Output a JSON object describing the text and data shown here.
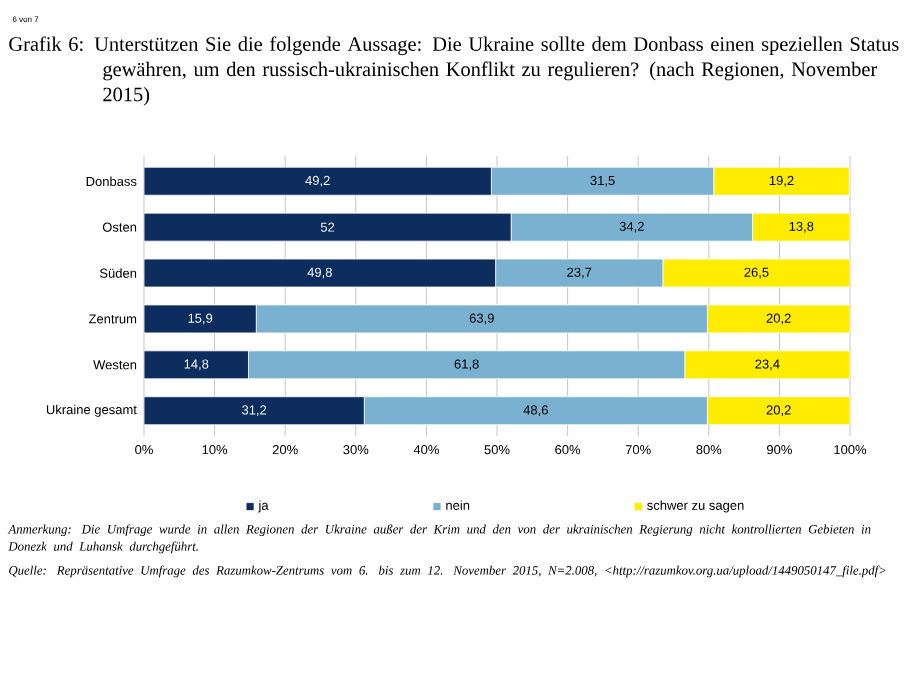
{
  "chart_data": {
    "type": "bar",
    "orientation": "horizontal",
    "stacked": true,
    "title": "Grafik 6: Unterstützen Sie die folgende Aussage: Die Ukraine sollte dem Donbass einen speziellen Status gewähren, um den russisch-ukrainischen Konflikt zu regulieren? (nach Regionen, November 2015)",
    "categories": [
      "Donbass",
      "Osten",
      "Süden",
      "Zentrum",
      "Westen",
      "Ukraine gesamt"
    ],
    "series": [
      {
        "name": "ja",
        "color": "#0d2d5e",
        "values": [
          49.2,
          52,
          49.8,
          15.9,
          14.8,
          31.2
        ],
        "value_labels": [
          "49,2",
          "52",
          "49,8",
          "15,9",
          "14,8",
          "31,2"
        ]
      },
      {
        "name": "nein",
        "color": "#7ab1d1",
        "values": [
          31.5,
          34.2,
          23.7,
          63.9,
          61.8,
          48.6
        ],
        "value_labels": [
          "31,5",
          "34,2",
          "23,7",
          "63,9",
          "61,8",
          "48,6"
        ]
      },
      {
        "name": "schwer zu sagen",
        "color": "#ffec00",
        "values": [
          19.2,
          13.8,
          26.5,
          20.2,
          23.4,
          20.2
        ],
        "value_labels": [
          "19,2",
          "13,8",
          "26,5",
          "20,2",
          "23,4",
          "20,2"
        ]
      }
    ],
    "xlim": [
      0,
      100
    ],
    "xticks": [
      {
        "value": 0,
        "label": "0%"
      },
      {
        "value": 10,
        "label": "10%"
      },
      {
        "value": 20,
        "label": "20%"
      },
      {
        "value": 30,
        "label": "30%"
      },
      {
        "value": 40,
        "label": "40%"
      },
      {
        "value": 50,
        "label": "50%"
      },
      {
        "value": 60,
        "label": "60%"
      },
      {
        "value": 70,
        "label": "70%"
      },
      {
        "value": 80,
        "label": "80%"
      },
      {
        "value": 90,
        "label": "90%"
      },
      {
        "value": 100,
        "label": "100%"
      }
    ],
    "grid": "x",
    "legend": "bottom",
    "annotations": [
      "6 von 7",
      "Anmerkung: Die Umfrage wurde in allen Regionen der Ukraine außer der Krim und den von der ukrainischen Regierung nicht kontrollierten Gebieten in Donezk und Luhansk durchgeführt.",
      "Quelle: Repräsentative Umfrage des Razumkow-Zentrums vom 6. bis zum 12. November 2015, N=2.008, <http://razumkov.org.ua/upload/1449050147_file.pdf>"
    ]
  }
}
